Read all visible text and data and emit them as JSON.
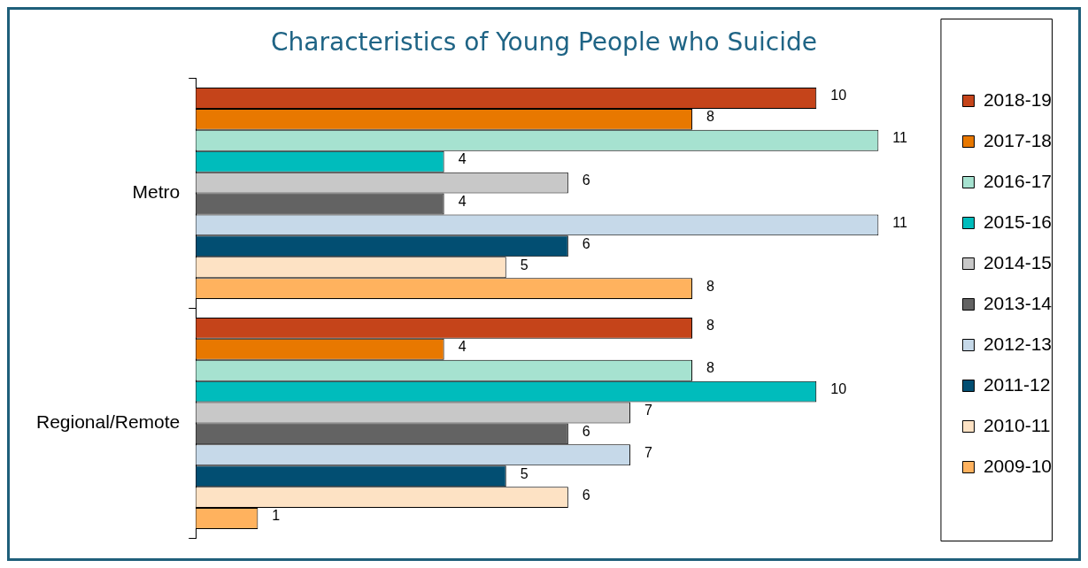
{
  "chart_data": {
    "type": "bar",
    "orientation": "horizontal",
    "title": "Characteristics of Young People who Suicide",
    "categories": [
      "Metro",
      "Regional/Remote"
    ],
    "series": [
      {
        "name": "2018-19",
        "color": "#c5441a",
        "values": [
          10,
          8
        ]
      },
      {
        "name": "2017-18",
        "color": "#e87800",
        "values": [
          8,
          4
        ]
      },
      {
        "name": "2016-17",
        "color": "#a6e2d0",
        "values": [
          11,
          8
        ]
      },
      {
        "name": "2015-16",
        "color": "#00bcbc",
        "values": [
          4,
          10
        ]
      },
      {
        "name": "2014-15",
        "color": "#c8c8c8",
        "values": [
          6,
          7
        ]
      },
      {
        "name": "2013-14",
        "color": "#636363",
        "values": [
          4,
          6
        ]
      },
      {
        "name": "2012-13",
        "color": "#c6d9e9",
        "values": [
          11,
          7
        ]
      },
      {
        "name": "2011-12",
        "color": "#024e72",
        "values": [
          6,
          5
        ]
      },
      {
        "name": "2010-11",
        "color": "#fde2c4",
        "values": [
          5,
          6
        ]
      },
      {
        "name": "2009-10",
        "color": "#ffb25e",
        "values": [
          8,
          1
        ]
      }
    ],
    "data_labels": true,
    "legend": "right",
    "grid": false,
    "tick_labels": "y"
  }
}
